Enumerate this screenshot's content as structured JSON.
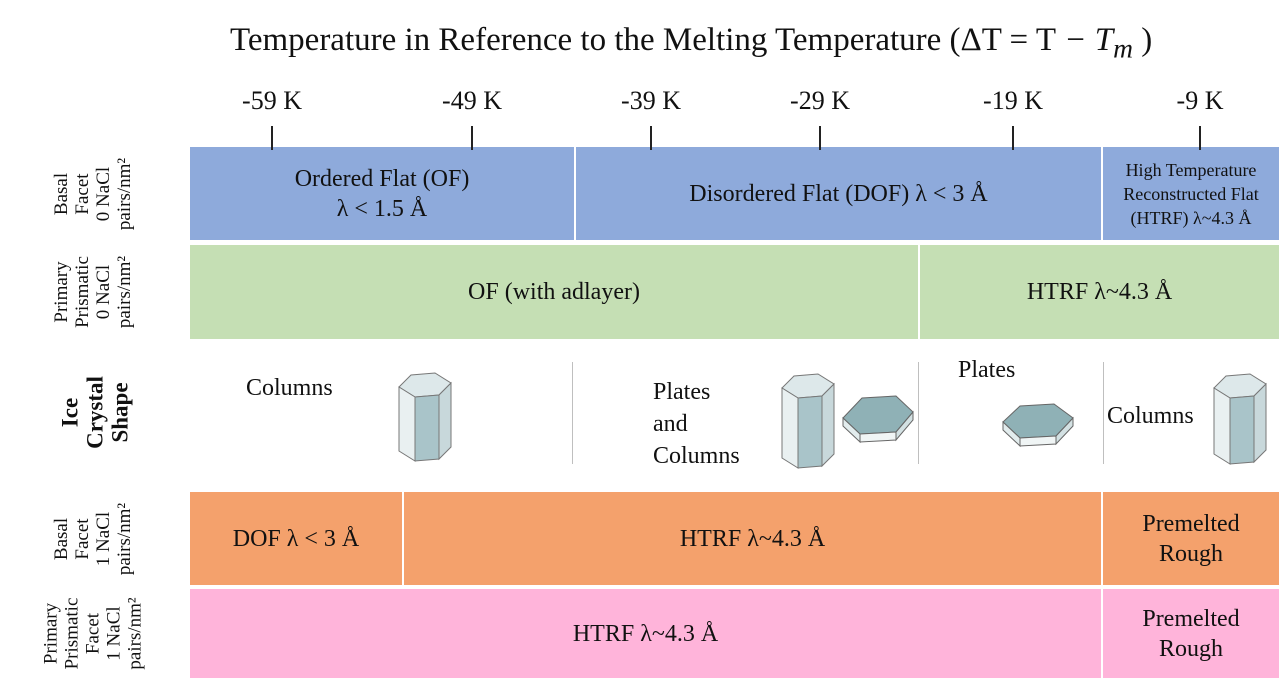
{
  "title": {
    "prefix": "Temperature in Reference to the Melting Temperature (ΔT = T",
    "mid": " − T",
    "sub": "m",
    "suffix": " )"
  },
  "ticks": [
    {
      "label": "-59 K"
    },
    {
      "label": "-49 K"
    },
    {
      "label": "-39 K"
    },
    {
      "label": "-29 K"
    },
    {
      "label": "-19 K"
    },
    {
      "label": "-9 K"
    }
  ],
  "row_labels": {
    "basal_0": [
      "Basal",
      "Facet",
      "0 NaCl",
      "pairs/nm²"
    ],
    "prismatic_0": [
      "Primary",
      "Prismatic",
      "0 NaCl",
      "pairs/nm²"
    ],
    "shape": [
      "Ice",
      "Crystal",
      "Shape"
    ],
    "basal_1": [
      "Basal",
      "Facet",
      "1 NaCl",
      "pairs/nm²"
    ],
    "prismatic_1": [
      "Primary",
      "Prismatic",
      "Facet",
      "1 NaCl",
      "pairs/nm²"
    ]
  },
  "bands": {
    "basal_0": [
      {
        "line1": "Ordered Flat (OF)",
        "line2": "λ < 1.5 Å"
      },
      {
        "line1": "Disordered Flat (DOF) λ < 3 Å"
      },
      {
        "line1": "High Temperature",
        "line2": "Reconstructed Flat",
        "line3": "(HTRF) λ~4.3 Å"
      }
    ],
    "prismatic_0": [
      {
        "line1": "OF (with adlayer)"
      },
      {
        "line1": "HTRF λ~4.3 Å"
      }
    ],
    "basal_1": [
      {
        "line1": "DOF λ < 3 Å"
      },
      {
        "line1": "HTRF λ~4.3 Å"
      },
      {
        "line1": "Premelted",
        "line2": "Rough"
      }
    ],
    "prismatic_1": [
      {
        "line1": "HTRF λ~4.3 Å"
      },
      {
        "line1": "Premelted",
        "line2": "Rough"
      }
    ]
  },
  "shapes": [
    {
      "line1": "Columns"
    },
    {
      "line1": "Plates",
      "line2": "and",
      "line3": "Columns"
    },
    {
      "line1": "Plates"
    },
    {
      "line1": "Columns"
    }
  ],
  "colors": {
    "basal_0": "#8eaadb",
    "prismatic_0": "#c5dfb4",
    "basal_1": "#f4a16c",
    "prismatic_1": "#ffb4da",
    "crystal_face": "#d5e3e6",
    "crystal_dark": "#9fbec3"
  }
}
